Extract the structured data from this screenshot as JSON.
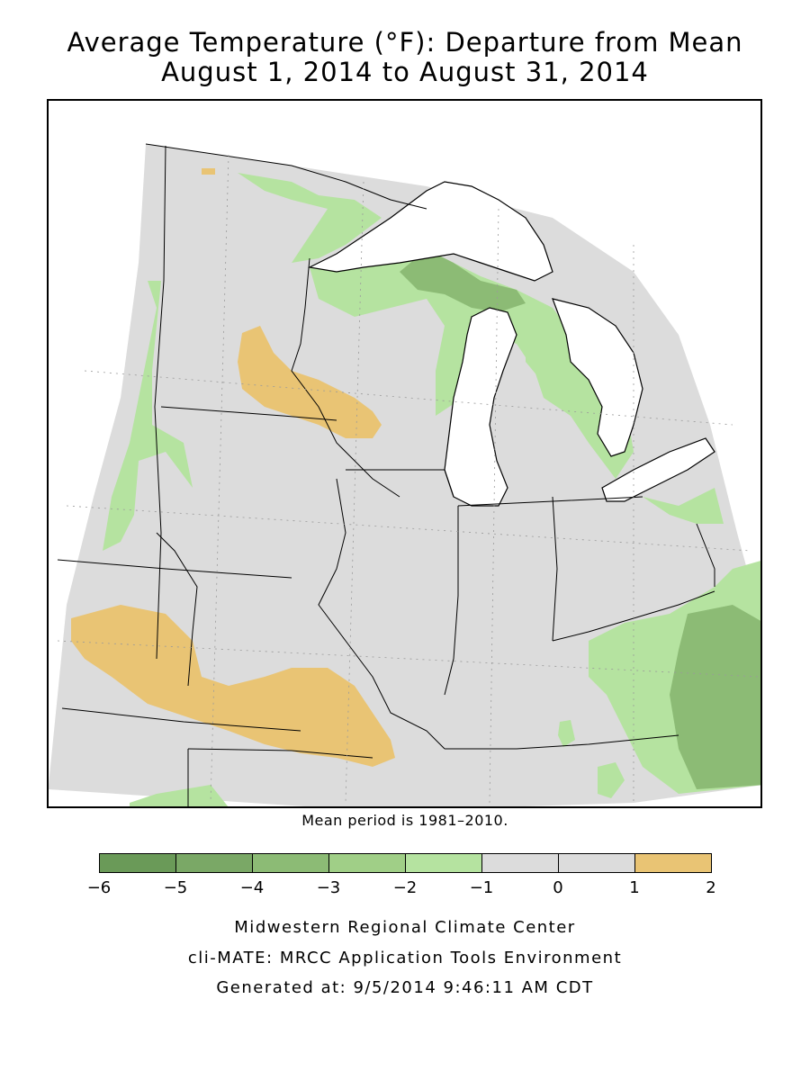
{
  "title_line1": "Average Temperature (°F): Departure from Mean",
  "title_line2": "August 1, 2014 to August 31, 2014",
  "mean_note": "Mean period is 1981–2010.",
  "legend": {
    "bins": [
      {
        "from": -6,
        "to": -5,
        "color": "#6a9a58"
      },
      {
        "from": -5,
        "to": -4,
        "color": "#7aa866"
      },
      {
        "from": -4,
        "to": -3,
        "color": "#8cbb75"
      },
      {
        "from": -3,
        "to": -2,
        "color": "#a0cf87"
      },
      {
        "from": -2,
        "to": -1,
        "color": "#b5e3a0"
      },
      {
        "from": -1,
        "to": 0,
        "color": "#dcdcdc"
      },
      {
        "from": 0,
        "to": 1,
        "color": "#dcdcdc"
      },
      {
        "from": 1,
        "to": 2,
        "color": "#e9c474"
      }
    ],
    "ticks": [
      "−6",
      "−5",
      "−4",
      "−3",
      "−2",
      "−1",
      "0",
      "1",
      "2"
    ]
  },
  "colors": {
    "near_normal": "#dcdcdc",
    "slightly_cool": "#b5e3a0",
    "cool": "#a0cf87",
    "cooler": "#8cbb75",
    "warm": "#e9c474",
    "water": "#ffffff",
    "border": "#000000"
  },
  "footer": {
    "line1": "Midwestern Regional Climate Center",
    "line2": "cli-MATE: MRCC Application Tools Environment",
    "line3": "Generated at: 9/5/2014 9:46:11 AM CDT"
  }
}
